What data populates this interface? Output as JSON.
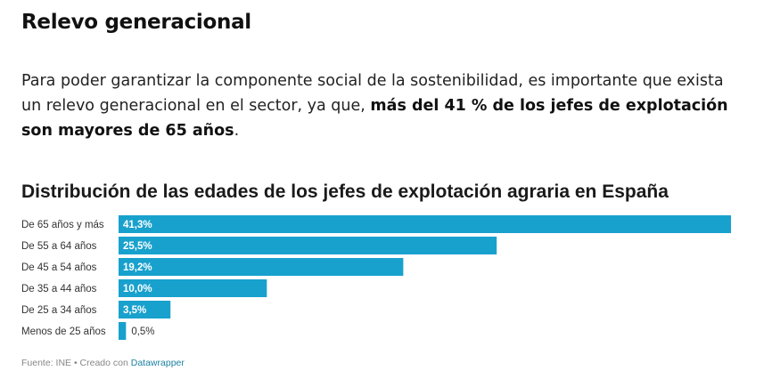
{
  "heading": "Relevo generacional",
  "intro": {
    "text_before": "Para poder garantizar la componente social de la sostenibilidad, es importante que exista un relevo generacional en el sector, ya que, ",
    "bold_text": "más del 41 % de los jefes de explotación son mayores de 65 años",
    "text_after": "."
  },
  "chart_data": {
    "type": "bar",
    "orientation": "horizontal",
    "title": "Distribución de las edades de los jefes de explotación agraria en España",
    "categories": [
      "De 65 años y más",
      "De 55 a 64 años",
      "De 45 a 54 años",
      "De 35 a 44 años",
      "De 25 a 34 años",
      "Menos de 25 años"
    ],
    "values": [
      41.3,
      25.5,
      19.2,
      10.0,
      3.5,
      0.5
    ],
    "value_labels": [
      "41,3%",
      "25,5%",
      "19,2%",
      "10,0%",
      "3,5%",
      "0,5%"
    ],
    "xlim": [
      0,
      41.3
    ],
    "grid": false,
    "bar_color": "#18a1cd"
  },
  "footer": {
    "source_text": "Fuente: INE • Creado con ",
    "link_text": "Datawrapper"
  }
}
